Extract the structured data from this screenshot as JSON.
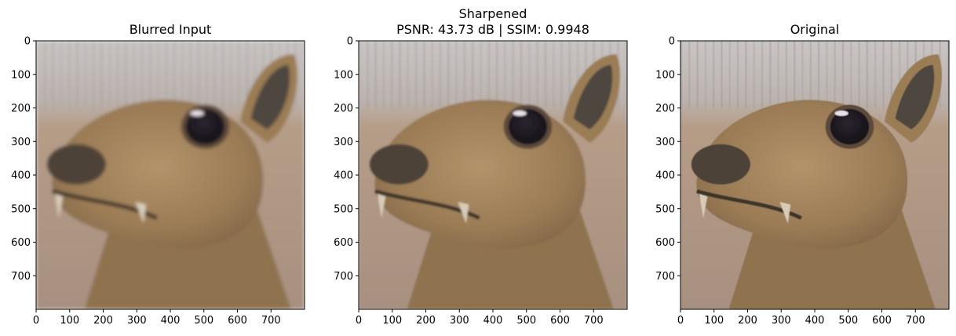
{
  "chart_data": [
    {
      "type": "image",
      "title": "Blurred Input",
      "subtitle": "",
      "xlim": [
        0,
        800
      ],
      "ylim": [
        0,
        800
      ],
      "y_inverted": true,
      "xticks": [
        0,
        100,
        200,
        300,
        400,
        500,
        600,
        700
      ],
      "yticks": [
        0,
        100,
        200,
        300,
        400,
        500,
        600,
        700
      ],
      "image_content": "photo of a small deer-like animal head (blurred)"
    },
    {
      "type": "image",
      "title": "Sharpened",
      "subtitle": "PSNR: 43.73 dB | SSIM: 0.9948",
      "xlim": [
        0,
        800
      ],
      "ylim": [
        0,
        800
      ],
      "y_inverted": true,
      "xticks": [
        0,
        100,
        200,
        300,
        400,
        500,
        600,
        700
      ],
      "yticks": [
        0,
        100,
        200,
        300,
        400,
        500,
        600,
        700
      ],
      "image_content": "photo of a small deer-like animal head (sharpened)"
    },
    {
      "type": "image",
      "title": "Original",
      "subtitle": "",
      "xlim": [
        0,
        800
      ],
      "ylim": [
        0,
        800
      ],
      "y_inverted": true,
      "xticks": [
        0,
        100,
        200,
        300,
        400,
        500,
        600,
        700
      ],
      "yticks": [
        0,
        100,
        200,
        300,
        400,
        500,
        600,
        700
      ],
      "image_content": "photo of a small deer-like animal head (original)"
    }
  ],
  "colors": {
    "wall_top": "#c7c2c0",
    "wall_streak": "#9a949a",
    "background_bottom": "#b39b84",
    "fur": "#9b7d55",
    "fur_light": "#b89a6e",
    "muzzle": "#4d4238",
    "ear_inner": "#4e463f",
    "eye": "#1e1a22"
  }
}
